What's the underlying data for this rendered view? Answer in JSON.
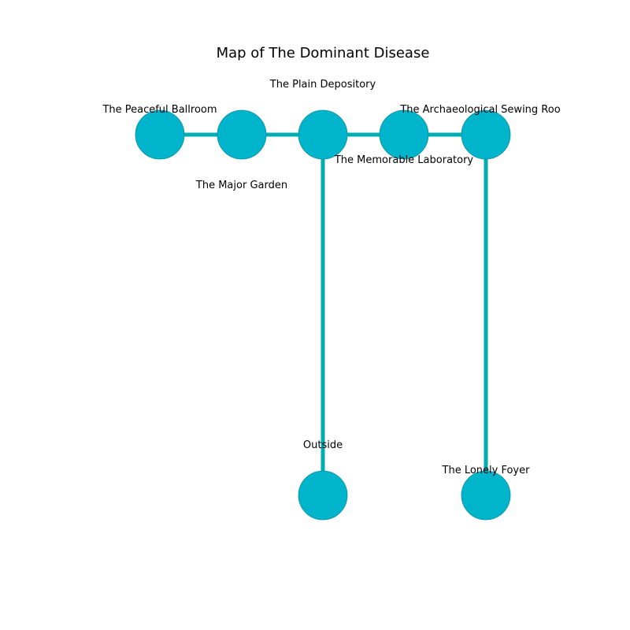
{
  "title": "Map of The Dominant Disease",
  "colors": {
    "node_fill": "#00B4CC",
    "node_stroke": "#0C8FA0",
    "edge": "#00ADB2",
    "background": "#FFFFFF"
  },
  "rooms": [
    {
      "label": "The Peaceful Ballroom"
    },
    {
      "label": "The Major Garden"
    },
    {
      "label": "The Plain Depository"
    },
    {
      "label": "The Memorable Laboratory"
    },
    {
      "label": "The Archaeological Sewing Roo"
    },
    {
      "label": "Outside"
    },
    {
      "label": "The Lonely Foyer"
    }
  ],
  "connections": [
    {
      "from": "The Peaceful Ballroom",
      "to": "The Major Garden"
    },
    {
      "from": "The Major Garden",
      "to": "The Plain Depository"
    },
    {
      "from": "The Plain Depository",
      "to": "The Memorable Laboratory"
    },
    {
      "from": "The Memorable Laboratory",
      "to": "The Archaeological Sewing Roo"
    },
    {
      "from": "The Plain Depository",
      "to": "Outside"
    },
    {
      "from": "The Archaeological Sewing Roo",
      "to": "The Lonely Foyer"
    }
  ]
}
